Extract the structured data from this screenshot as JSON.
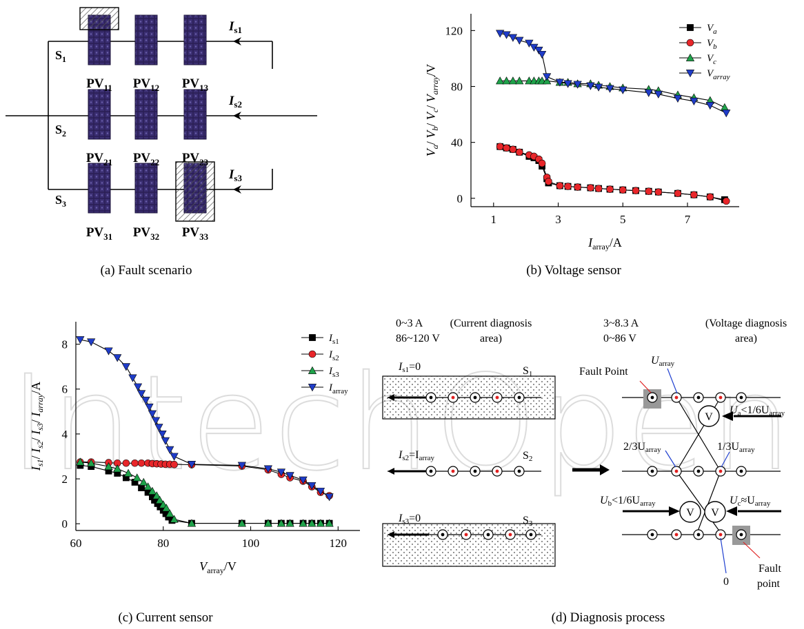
{
  "captions": {
    "a": "(a) Fault scenario",
    "b": "(b) Voltage sensor",
    "c": "(c) Current sensor",
    "d": "(d) Diagnosis process"
  },
  "panel_a": {
    "strings": [
      "S1",
      "S2",
      "S3"
    ],
    "string_currents": [
      "Is1",
      "Is2",
      "Is3"
    ],
    "modules": [
      [
        "PV11",
        "PV12",
        "PV13"
      ],
      [
        "PV21",
        "PV22",
        "PV23"
      ],
      [
        "PV31",
        "PV32",
        "PV33"
      ]
    ],
    "shaded_modules": [
      "PV11",
      "PV33"
    ]
  },
  "panel_d": {
    "current_area_range_a": "0~3 A",
    "current_area_range_v": "86~120 V",
    "current_area_label_1": "(Current diagnosis",
    "current_area_label_2": "area)",
    "voltage_area_range_a": "3~8.3 A",
    "voltage_area_range_v": "0~86 V",
    "voltage_area_label_1": "(Voltage diagnosis",
    "voltage_area_label_2": "area)",
    "is1": "I",
    "is1_sub": "s1",
    "is1_rest": "=0",
    "is2": "I",
    "is2_sub": "s2",
    "is2_rest": "=I",
    "is2_sub2": "array",
    "is3": "I",
    "is3_sub": "s3",
    "is3_rest": "=0",
    "s1": "S",
    "s1_sub": "1",
    "s2": "S",
    "s2_sub": "2",
    "s3": "S",
    "s3_sub": "3",
    "fault_point_top": "Fault Point",
    "fault_point_bottom_1": "Fault",
    "fault_point_bottom_2": "point",
    "u_array": "U",
    "u_array_sub": "array",
    "two_thirds": "2/3U",
    "one_third": "1/3U",
    "ua_cond": "U",
    "ua_sub": "a",
    "ua_rest": "<1/6U",
    "ub_cond": "U",
    "ub_sub": "b",
    "ub_rest": "<1/6U",
    "uc_cond": "U",
    "uc_sub": "c",
    "uc_rest": "≈U",
    "zero": "0",
    "meter": "V"
  },
  "watermark": "IntechOpen",
  "chart_data": [
    {
      "type": "line",
      "id": "voltage-sensor",
      "xlabel": "I",
      "xlabel_sub": "array",
      "xlabel_unit": "/A",
      "ylabel": "Va/ Vb/ Vc/ Varray/V",
      "xlim": [
        0.3,
        8.6
      ],
      "ylim": [
        -6,
        132
      ],
      "xticks": [
        1,
        3,
        5,
        7
      ],
      "yticks": [
        0,
        40,
        80,
        120
      ],
      "legend_position": "top-right",
      "series": [
        {
          "name": "Va",
          "sub": "a",
          "marker": "square",
          "color": "#000000",
          "x": [
            1.2,
            1.4,
            1.6,
            1.8,
            2.1,
            2.25,
            2.4,
            2.5,
            2.65,
            2.7,
            3.05,
            3.3,
            3.6,
            4.0,
            4.25,
            4.6,
            5.0,
            5.4,
            5.8,
            6.1,
            6.7,
            7.2,
            7.7,
            8.15
          ],
          "y": [
            37,
            36,
            35,
            33,
            30,
            29,
            27,
            23,
            14,
            11,
            9,
            8.5,
            8,
            7.5,
            7,
            6.5,
            6,
            5.5,
            5,
            4.5,
            3.5,
            2.5,
            1,
            -1
          ]
        },
        {
          "name": "Vb",
          "sub": "b",
          "marker": "circle",
          "color": "#e8262a",
          "x": [
            1.2,
            1.4,
            1.6,
            1.8,
            2.1,
            2.25,
            2.4,
            2.5,
            2.65,
            2.7,
            3.05,
            3.3,
            3.6,
            4.0,
            4.25,
            4.6,
            5.0,
            5.4,
            5.8,
            6.1,
            6.7,
            7.2,
            7.7,
            8.2
          ],
          "y": [
            37,
            36,
            35,
            33,
            31,
            30,
            28,
            25,
            15,
            12,
            9,
            8.5,
            8,
            7.5,
            7,
            6.5,
            6,
            5.5,
            5,
            4.5,
            3.5,
            2.5,
            1,
            -2
          ]
        },
        {
          "name": "Vc",
          "sub": "c",
          "marker": "triangle-up",
          "color": "#1fa24a",
          "x": [
            1.2,
            1.4,
            1.6,
            1.8,
            2.1,
            2.25,
            2.4,
            2.5,
            2.65,
            3.05,
            3.3,
            3.6,
            4.0,
            4.25,
            4.6,
            5.0,
            5.8,
            6.1,
            6.7,
            7.2,
            7.7,
            8.15
          ],
          "y": [
            84,
            84,
            84,
            84,
            84,
            84,
            84,
            84,
            84,
            83,
            83,
            82,
            82,
            81,
            80,
            79,
            78,
            77,
            74,
            72,
            70,
            65
          ]
        },
        {
          "name": "Varray",
          "sub": "array",
          "marker": "triangle-down",
          "color": "#1f3cc8",
          "x": [
            1.2,
            1.4,
            1.6,
            1.8,
            2.1,
            2.25,
            2.4,
            2.5,
            2.65,
            3.05,
            3.3,
            3.6,
            4.0,
            4.25,
            4.6,
            5.0,
            5.8,
            6.1,
            6.7,
            7.2,
            7.7,
            8.2
          ],
          "y": [
            118,
            117,
            115,
            113,
            111,
            108,
            106,
            103,
            87,
            83,
            82,
            81.5,
            80.5,
            79.5,
            78.5,
            77.5,
            75.5,
            74.5,
            71.5,
            69.5,
            66.5,
            61
          ]
        }
      ]
    },
    {
      "type": "line",
      "id": "current-sensor",
      "xlabel": "V",
      "xlabel_sub": "array",
      "xlabel_unit": "/V",
      "ylabel": "Is1/ Is2/ Is3/ Iarray/A",
      "xlim": [
        60,
        125
      ],
      "ylim": [
        -0.3,
        9
      ],
      "xticks": [
        60,
        80,
        100,
        120
      ],
      "yticks": [
        0,
        2,
        4,
        6,
        8
      ],
      "legend_position": "top-right",
      "series": [
        {
          "name": "Is1",
          "sub": "s1",
          "marker": "square",
          "color": "#000000",
          "x": [
            61,
            63.5,
            67.5,
            69.5,
            71.5,
            73.5,
            75,
            76.5,
            77.5,
            78,
            78.7,
            79.3,
            80,
            80.6,
            81.2,
            82,
            86.5,
            98,
            104,
            107,
            109,
            112,
            114,
            116,
            118
          ],
          "y": [
            2.6,
            2.55,
            2.35,
            2.25,
            2.05,
            1.85,
            1.6,
            1.4,
            1.2,
            1.05,
            0.9,
            0.75,
            0.6,
            0.45,
            0.3,
            0.15,
            0.02,
            0.02,
            0.02,
            0.02,
            0.02,
            0.02,
            0.02,
            0.02,
            0.02
          ]
        },
        {
          "name": "Is2",
          "sub": "s2",
          "marker": "circle",
          "color": "#e8262a",
          "x": [
            61,
            63.5,
            67.5,
            69.5,
            71.5,
            73.5,
            75,
            76.5,
            77.5,
            78.5,
            79.5,
            80.5,
            81.5,
            82.5,
            86.5,
            98,
            104,
            107,
            109,
            112,
            114,
            116,
            118
          ],
          "y": [
            2.75,
            2.75,
            2.72,
            2.7,
            2.7,
            2.7,
            2.7,
            2.7,
            2.68,
            2.67,
            2.66,
            2.65,
            2.65,
            2.64,
            2.63,
            2.57,
            2.4,
            2.2,
            2.05,
            1.9,
            1.65,
            1.4,
            1.25
          ]
        },
        {
          "name": "Is3",
          "sub": "s3",
          "marker": "triangle-up",
          "color": "#1fa24a",
          "x": [
            61,
            63.5,
            67.5,
            69.5,
            72,
            74,
            75.5,
            76.5,
            77.5,
            78.5,
            79.2,
            80,
            80.7,
            81.5,
            82.5,
            86.5,
            98,
            104,
            107,
            109,
            112,
            114,
            116,
            118
          ],
          "y": [
            2.75,
            2.7,
            2.55,
            2.45,
            2.25,
            2.05,
            1.85,
            1.65,
            1.45,
            1.25,
            1.05,
            0.85,
            0.7,
            0.45,
            0.2,
            0.02,
            0.02,
            0.02,
            0.02,
            0.02,
            0.02,
            0.02,
            0.02,
            0.02
          ]
        },
        {
          "name": "Iarray",
          "sub": "array",
          "marker": "triangle-down",
          "color": "#1f3cc8",
          "x": [
            61,
            63.5,
            67.5,
            69.5,
            71.5,
            73,
            74.2,
            75,
            76,
            76.8,
            77.5,
            78.3,
            79,
            79.8,
            80.5,
            81.5,
            82.5,
            86.5,
            98,
            104,
            107,
            109,
            112,
            114,
            116,
            118
          ],
          "y": [
            8.2,
            8.1,
            7.7,
            7.4,
            7.0,
            6.5,
            6.1,
            5.8,
            5.5,
            5.2,
            4.9,
            4.6,
            4.3,
            4.0,
            3.7,
            3.3,
            3.0,
            2.65,
            2.6,
            2.45,
            2.3,
            2.15,
            1.95,
            1.7,
            1.45,
            1.2
          ]
        }
      ]
    }
  ]
}
